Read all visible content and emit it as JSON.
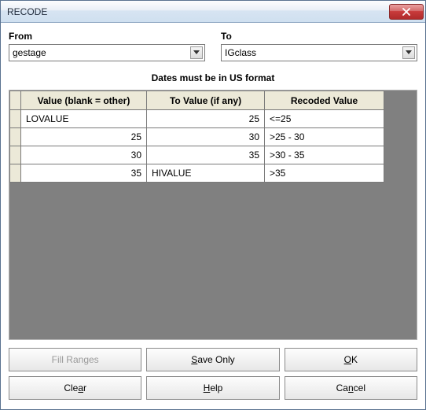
{
  "window": {
    "title": "RECODE"
  },
  "fields": {
    "from": {
      "label": "From",
      "value": "gestage"
    },
    "to": {
      "label": "To",
      "value": "IGclass"
    }
  },
  "note": "Dates must be in US format",
  "table": {
    "headers": {
      "value": "Value (blank = other)",
      "toValue": "To Value (if any)",
      "recoded": "Recoded Value"
    },
    "rows": [
      {
        "value": "LOVALUE",
        "valueAlign": "txt",
        "toValue": "25",
        "toAlign": "num",
        "recoded": "<=25"
      },
      {
        "value": "25",
        "valueAlign": "num",
        "toValue": "30",
        "toAlign": "num",
        "recoded": ">25 - 30"
      },
      {
        "value": "30",
        "valueAlign": "num",
        "toValue": "35",
        "toAlign": "num",
        "recoded": ">30 - 35"
      },
      {
        "value": "35",
        "valueAlign": "num",
        "toValue": "HIVALUE",
        "toAlign": "txt",
        "recoded": ">35"
      }
    ]
  },
  "buttons": {
    "fillRanges": "Fill Ranges",
    "saveOnly_pre": "",
    "saveOnly_mn": "S",
    "saveOnly_post": "ave Only",
    "ok_pre": "",
    "ok_mn": "O",
    "ok_post": "K",
    "clear_pre": "Cle",
    "clear_mn": "a",
    "clear_post": "r",
    "help_pre": "",
    "help_mn": "H",
    "help_post": "elp",
    "cancel_pre": "Ca",
    "cancel_mn": "n",
    "cancel_post": "cel"
  },
  "colors": {
    "grid_bg": "#808080",
    "header_bg": "#ece9d8",
    "border": "#7a7a7a"
  }
}
